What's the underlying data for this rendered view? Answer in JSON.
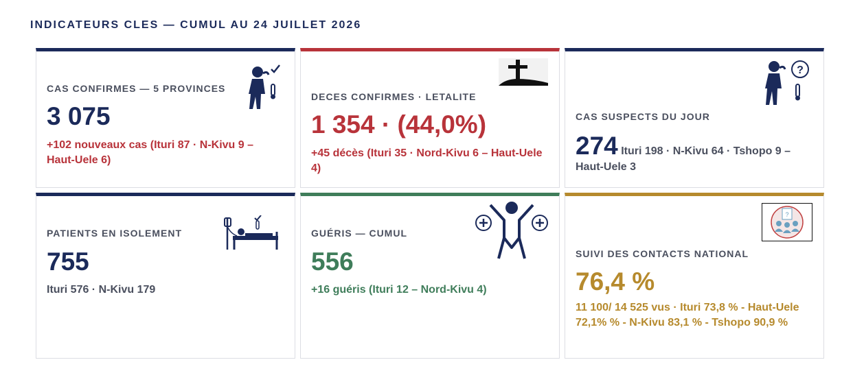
{
  "heading": "INDICATEURS CLES — CUMUL AU 24 JUILLET 2026",
  "cards": [
    {
      "label": "CAS CONFIRMES — 5 PROVINCES",
      "value": "3 075",
      "detail": "+102 nouveaux cas (Ituri 87 · N-Kivu 9 – Haut-Uele 6)",
      "icon": "sick-person-thermometer-icon",
      "accent": "#1b2a5a"
    },
    {
      "label": "DECES CONFIRMES · LETALITE",
      "value": "1 354 · (44,0%)",
      "detail": "+45 décès (Ituri 35 · Nord-Kivu 6 – Haut-Uele 4)",
      "icon": "grave-cross-icon",
      "accent": "#b8333a"
    },
    {
      "label": "CAS SUSPECTS DU JOUR",
      "value": "274",
      "detail": "Ituri 198 · N-Kivu 64 · Tshopo 9 – Haut-Uele 3",
      "icon": "suspect-person-question-icon",
      "accent": "#1b2a5a"
    },
    {
      "label": "PATIENTS EN ISOLEMENT",
      "value": "755",
      "detail": "Ituri 576 · N-Kivu 179",
      "icon": "patient-bed-iv-icon",
      "accent": "#1b2a5a"
    },
    {
      "label": "GUÉRIS — CUMUL",
      "value": "556",
      "detail": "+16 guéris (Ituri 12 – Nord-Kivu 4)",
      "icon": "recovered-person-icon",
      "accent": "#3f7d5a"
    },
    {
      "label": "SUIVI DES CONTACTS NATIONAL",
      "value": "76,4 %",
      "detail": "11 100/ 14 525 vus · Ituri 73,8 % - Haut-Uele 72,1% % - N-Kivu 83,1 % - Tshopo 90,9 %",
      "icon": "contact-tracing-group-icon",
      "accent": "#b68a2d"
    }
  ]
}
